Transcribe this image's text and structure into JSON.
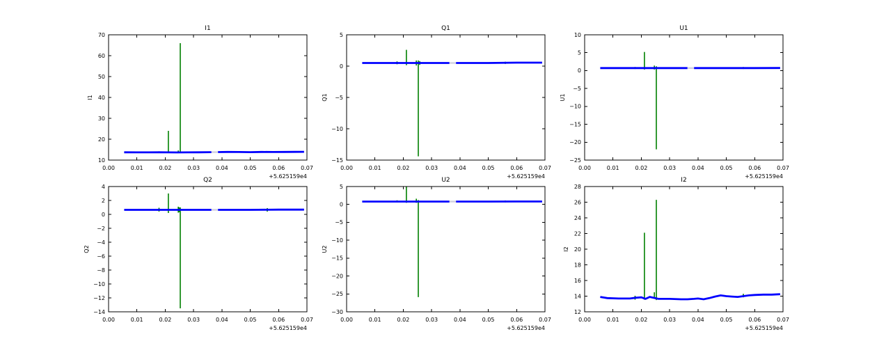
{
  "figure": {
    "background": "#ffffff",
    "axis_color": "#000000",
    "line_color": "#0000ff",
    "spike_color": "#008000",
    "gap_color": "#d0d0e0",
    "x_offset_label": "+5.625159e4"
  },
  "chart_data": [
    {
      "type": "line",
      "title": "I1",
      "ylabel": "I1",
      "xlabel": "",
      "xlim": [
        0,
        0.07
      ],
      "ylim": [
        10,
        70
      ],
      "xticks": [
        0,
        0.01,
        0.02,
        0.03,
        0.04,
        0.05,
        0.06,
        0.07
      ],
      "xtick_labels": [
        "0.00",
        "0.01",
        "0.02",
        "0.03",
        "0.04",
        "0.05",
        "0.06",
        "0.07"
      ],
      "yticks": [
        10,
        20,
        30,
        40,
        50,
        60,
        70
      ],
      "ytick_labels": [
        "10",
        "20",
        "30",
        "40",
        "50",
        "60",
        "70"
      ],
      "x_offset": "+5.625159e4",
      "grid": false,
      "legend": null,
      "baseline": {
        "x": [
          0.0055,
          0.01,
          0.014,
          0.018,
          0.021,
          0.024,
          0.028,
          0.032,
          0.0363,
          0.0386,
          0.042,
          0.046,
          0.05,
          0.054,
          0.058,
          0.062,
          0.066,
          0.069
        ],
        "y": [
          13.75,
          13.7,
          13.7,
          13.72,
          13.7,
          13.68,
          13.7,
          13.75,
          13.8,
          13.82,
          13.9,
          13.85,
          13.8,
          13.9,
          13.85,
          13.9,
          13.92,
          13.95
        ]
      },
      "gap": {
        "x0": 0.0363,
        "x1": 0.0386
      },
      "green_segments": [
        {
          "x": 0.0178,
          "y0": 13.5,
          "y1": 14.2
        },
        {
          "x": 0.0211,
          "y0": 13.55,
          "y1": 24.0
        },
        {
          "x": 0.0246,
          "y0": 13.5,
          "y1": 14.6
        },
        {
          "x": 0.0253,
          "y0": 13.45,
          "y1": 66.0
        },
        {
          "x": 0.056,
          "y0": 13.6,
          "y1": 14.2
        }
      ]
    },
    {
      "type": "line",
      "title": "Q1",
      "ylabel": "Q1",
      "xlabel": "",
      "xlim": [
        0,
        0.07
      ],
      "ylim": [
        -15,
        5
      ],
      "xticks": [
        0,
        0.01,
        0.02,
        0.03,
        0.04,
        0.05,
        0.06,
        0.07
      ],
      "xtick_labels": [
        "0.00",
        "0.01",
        "0.02",
        "0.03",
        "0.04",
        "0.05",
        "0.06",
        "0.07"
      ],
      "yticks": [
        -15,
        -10,
        -5,
        0,
        5
      ],
      "ytick_labels": [
        "−15",
        "−10",
        "−5",
        "0",
        "5"
      ],
      "x_offset": "+5.625159e4",
      "grid": false,
      "legend": null,
      "baseline": {
        "x": [
          0.0055,
          0.01,
          0.02,
          0.03,
          0.0363,
          0.0386,
          0.05,
          0.06,
          0.069
        ],
        "y": [
          0.5,
          0.5,
          0.5,
          0.5,
          0.5,
          0.5,
          0.5,
          0.55,
          0.55
        ]
      },
      "gap": {
        "x0": 0.0363,
        "x1": 0.0386
      },
      "green_segments": [
        {
          "x": 0.0178,
          "y0": 0.3,
          "y1": 0.75
        },
        {
          "x": 0.0211,
          "y0": 0.15,
          "y1": 2.6
        },
        {
          "x": 0.0246,
          "y0": 0.1,
          "y1": 0.9
        },
        {
          "x": 0.0253,
          "y0": -14.4,
          "y1": 0.9
        },
        {
          "x": 0.0258,
          "y0": 0.2,
          "y1": 0.8
        },
        {
          "x": 0.056,
          "y0": 0.35,
          "y1": 0.7
        }
      ]
    },
    {
      "type": "line",
      "title": "U1",
      "ylabel": "U1",
      "xlabel": "",
      "xlim": [
        0,
        0.07
      ],
      "ylim": [
        -25,
        10
      ],
      "xticks": [
        0,
        0.01,
        0.02,
        0.03,
        0.04,
        0.05,
        0.06,
        0.07
      ],
      "xtick_labels": [
        "0.00",
        "0.01",
        "0.02",
        "0.03",
        "0.04",
        "0.05",
        "0.06",
        "0.07"
      ],
      "yticks": [
        -25,
        -20,
        -15,
        -10,
        -5,
        0,
        5,
        10
      ],
      "ytick_labels": [
        "−25",
        "−20",
        "−15",
        "−10",
        "−5",
        "0",
        "5",
        "10"
      ],
      "x_offset": "+5.625159e4",
      "grid": false,
      "legend": null,
      "baseline": {
        "x": [
          0.0055,
          0.01,
          0.02,
          0.03,
          0.0363,
          0.0386,
          0.05,
          0.06,
          0.069
        ],
        "y": [
          0.7,
          0.7,
          0.7,
          0.7,
          0.7,
          0.7,
          0.7,
          0.7,
          0.72
        ]
      },
      "gap": {
        "x0": 0.0363,
        "x1": 0.0386
      },
      "green_segments": [
        {
          "x": 0.0178,
          "y0": 0.45,
          "y1": 1.0
        },
        {
          "x": 0.0211,
          "y0": 0.3,
          "y1": 5.2
        },
        {
          "x": 0.0246,
          "y0": 0.3,
          "y1": 1.4
        },
        {
          "x": 0.0253,
          "y0": -22.0,
          "y1": 1.2
        },
        {
          "x": 0.056,
          "y0": 0.45,
          "y1": 1.0
        }
      ]
    },
    {
      "type": "line",
      "title": "Q2",
      "ylabel": "Q2",
      "xlabel": "",
      "xlim": [
        0,
        0.07
      ],
      "ylim": [
        -14,
        4
      ],
      "xticks": [
        0,
        0.01,
        0.02,
        0.03,
        0.04,
        0.05,
        0.06,
        0.07
      ],
      "xtick_labels": [
        "0.00",
        "0.01",
        "0.02",
        "0.03",
        "0.04",
        "0.05",
        "0.06",
        "0.07"
      ],
      "yticks": [
        -14,
        -12,
        -10,
        -8,
        -6,
        -4,
        -2,
        0,
        2,
        4
      ],
      "ytick_labels": [
        "−14",
        "−12",
        "−10",
        "−8",
        "−6",
        "−4",
        "−2",
        "0",
        "2",
        "4"
      ],
      "x_offset": "+5.625159e4",
      "grid": false,
      "legend": null,
      "baseline": {
        "x": [
          0.0055,
          0.01,
          0.02,
          0.03,
          0.0363,
          0.0386,
          0.05,
          0.06,
          0.069
        ],
        "y": [
          0.65,
          0.65,
          0.65,
          0.65,
          0.65,
          0.65,
          0.65,
          0.68,
          0.68
        ]
      },
      "gap": {
        "x0": 0.0363,
        "x1": 0.0386
      },
      "green_segments": [
        {
          "x": 0.0178,
          "y0": 0.4,
          "y1": 0.95
        },
        {
          "x": 0.0211,
          "y0": 0.2,
          "y1": 3.0
        },
        {
          "x": 0.0246,
          "y0": 0.25,
          "y1": 1.1
        },
        {
          "x": 0.0249,
          "y0": 0.3,
          "y1": 1.0
        },
        {
          "x": 0.0253,
          "y0": -13.5,
          "y1": 1.0
        },
        {
          "x": 0.056,
          "y0": 0.4,
          "y1": 0.9
        }
      ]
    },
    {
      "type": "line",
      "title": "U2",
      "ylabel": "U2",
      "xlabel": "",
      "xlim": [
        0,
        0.07
      ],
      "ylim": [
        -30,
        5
      ],
      "xticks": [
        0,
        0.01,
        0.02,
        0.03,
        0.04,
        0.05,
        0.06,
        0.07
      ],
      "xtick_labels": [
        "0.00",
        "0.01",
        "0.02",
        "0.03",
        "0.04",
        "0.05",
        "0.06",
        "0.07"
      ],
      "yticks": [
        -30,
        -25,
        -20,
        -15,
        -10,
        -5,
        0,
        5
      ],
      "ytick_labels": [
        "−30",
        "−25",
        "−20",
        "−15",
        "−10",
        "−5",
        "0",
        "5"
      ],
      "x_offset": "+5.625159e4",
      "grid": false,
      "legend": null,
      "baseline": {
        "x": [
          0.0055,
          0.01,
          0.02,
          0.03,
          0.0363,
          0.0386,
          0.05,
          0.06,
          0.069
        ],
        "y": [
          0.8,
          0.8,
          0.8,
          0.8,
          0.8,
          0.8,
          0.8,
          0.82,
          0.82
        ]
      },
      "gap": {
        "x0": 0.0363,
        "x1": 0.0386
      },
      "green_segments": [
        {
          "x": 0.0178,
          "y0": 0.55,
          "y1": 1.15
        },
        {
          "x": 0.0211,
          "y0": 0.45,
          "y1": 5.0
        },
        {
          "x": 0.0246,
          "y0": 0.45,
          "y1": 1.6
        },
        {
          "x": 0.0253,
          "y0": -25.9,
          "y1": 1.2
        },
        {
          "x": 0.056,
          "y0": 0.55,
          "y1": 1.1
        }
      ]
    },
    {
      "type": "line",
      "title": "I2",
      "ylabel": "I2",
      "xlabel": "",
      "xlim": [
        0,
        0.07
      ],
      "ylim": [
        12,
        28
      ],
      "xticks": [
        0,
        0.01,
        0.02,
        0.03,
        0.04,
        0.05,
        0.06,
        0.07
      ],
      "xtick_labels": [
        "0.00",
        "0.01",
        "0.02",
        "0.03",
        "0.04",
        "0.05",
        "0.06",
        "0.07"
      ],
      "yticks": [
        12,
        14,
        16,
        18,
        20,
        22,
        24,
        26,
        28
      ],
      "ytick_labels": [
        "12",
        "14",
        "16",
        "18",
        "20",
        "22",
        "24",
        "26",
        "28"
      ],
      "x_offset": "+5.625159e4",
      "grid": false,
      "legend": null,
      "baseline": {
        "x": [
          0.0055,
          0.008,
          0.012,
          0.016,
          0.018,
          0.02,
          0.0215,
          0.023,
          0.026,
          0.03,
          0.034,
          0.0363,
          0.0386,
          0.04,
          0.042,
          0.044,
          0.046,
          0.048,
          0.05,
          0.052,
          0.054,
          0.056,
          0.058,
          0.06,
          0.063,
          0.066,
          0.069
        ],
        "y": [
          13.9,
          13.75,
          13.7,
          13.7,
          13.8,
          13.85,
          13.65,
          13.9,
          13.65,
          13.65,
          13.6,
          13.6,
          13.65,
          13.7,
          13.6,
          13.75,
          13.95,
          14.1,
          14.0,
          13.95,
          13.9,
          14.0,
          14.1,
          14.15,
          14.2,
          14.2,
          14.25
        ]
      },
      "gap": null,
      "green_segments": [
        {
          "x": 0.0178,
          "y0": 13.55,
          "y1": 14.05
        },
        {
          "x": 0.0211,
          "y0": 13.55,
          "y1": 22.1
        },
        {
          "x": 0.0246,
          "y0": 13.7,
          "y1": 14.5
        },
        {
          "x": 0.0253,
          "y0": 13.5,
          "y1": 26.3
        },
        {
          "x": 0.056,
          "y0": 13.85,
          "y1": 14.3
        }
      ]
    }
  ]
}
